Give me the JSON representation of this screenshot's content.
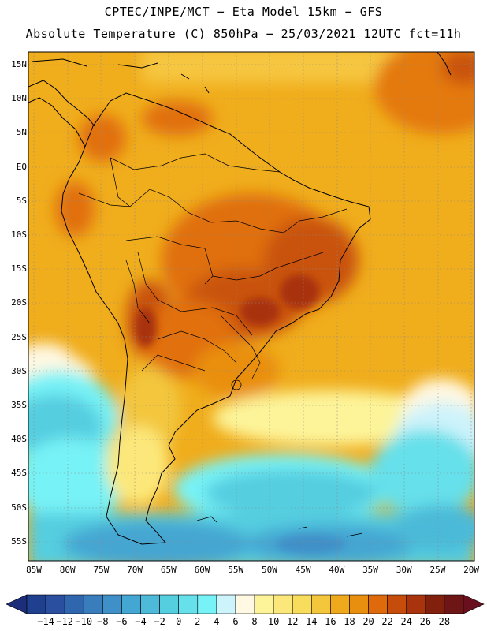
{
  "header": {
    "line1": "CPTEC/INPE/MCT −  Eta Model 15km − GFS",
    "line2": "Absolute Temperature (C) 850hPa − 25/03/2021 12UTC fct=11h"
  },
  "map": {
    "lat_labels": [
      "15N",
      "10N",
      "5N",
      "EQ",
      "5S",
      "10S",
      "15S",
      "20S",
      "25S",
      "30S",
      "35S",
      "40S",
      "45S",
      "50S",
      "55S"
    ],
    "lon_labels": [
      "85W",
      "80W",
      "75W",
      "70W",
      "65W",
      "60W",
      "55W",
      "50W",
      "45W",
      "40W",
      "35W",
      "30W",
      "25W",
      "20W"
    ]
  },
  "colorbar": {
    "labels": [
      "−14",
      "−12",
      "−10",
      "−8",
      "−6",
      "−4",
      "−2",
      "0",
      "2",
      "4",
      "6",
      "8",
      "10",
      "12",
      "14",
      "16",
      "18",
      "20",
      "22",
      "24",
      "26",
      "28"
    ],
    "colors": [
      "#1f3f8f",
      "#2a4f9e",
      "#2f66ad",
      "#3a7dbd",
      "#3f90c8",
      "#44a6d2",
      "#4cbad8",
      "#55cee0",
      "#66e0ea",
      "#77f2f6",
      "#cdf3fb",
      "#fff8e2",
      "#fdf49a",
      "#fce87a",
      "#f8dc5c",
      "#f3c63c",
      "#eea91c",
      "#e98f10",
      "#df6a0b",
      "#c64c0b",
      "#a8330c",
      "#82200e",
      "#6e1616"
    ],
    "arrow_left_color": "#1c2e7a",
    "arrow_right_color": "#6a0f1e"
  }
}
